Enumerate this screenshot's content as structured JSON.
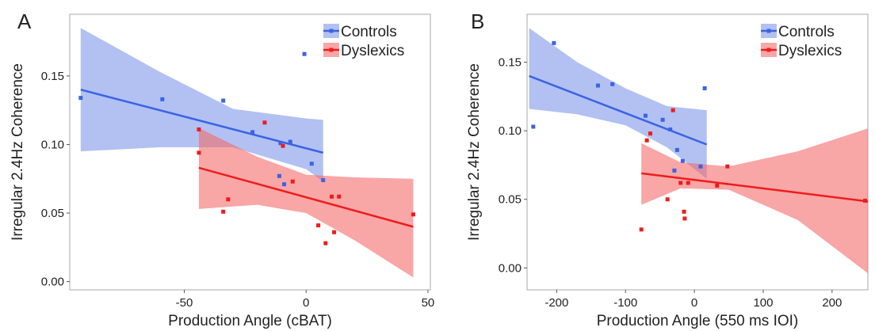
{
  "chart_data": [
    {
      "type": "scatter",
      "label": "A",
      "x_label": "Production Angle (cBAT)",
      "y_label": "Irregular 2.4Hz Coherence",
      "xlim": [
        -97,
        51
      ],
      "ylim": [
        -0.006,
        0.195
      ],
      "xticks": [
        -50,
        0,
        50
      ],
      "yticks": [
        {
          "value": 0,
          "label": "0.00"
        },
        {
          "value": 0.05,
          "label": "0.05"
        },
        {
          "value": 0.1,
          "label": "0.10"
        },
        {
          "value": 0.15,
          "label": "0.15"
        }
      ],
      "legend": "top-right",
      "series": [
        {
          "name": "Controls",
          "color": "#3b63e3",
          "band_color": "#7f97ea",
          "x": [
            -92.5,
            -59,
            -34,
            -22,
            -10.5,
            -6.5,
            -0.7,
            -11,
            -9,
            2.3,
            7
          ],
          "values": [
            0.134,
            0.133,
            0.132,
            0.109,
            0.101,
            0.102,
            0.166,
            0.077,
            0.071,
            0.086,
            0.074
          ],
          "fit_x": [
            -92.5,
            7
          ],
          "fit_values": [
            0.14,
            0.094
          ],
          "band_x": [
            -92.5,
            -60,
            -30,
            0,
            7
          ],
          "band_upper": [
            0.185,
            0.153,
            0.126,
            0.119,
            0.118
          ],
          "band_lower": [
            0.095,
            0.098,
            0.098,
            0.082,
            0.073
          ]
        },
        {
          "name": "Dyslexics",
          "color": "#ee1c1c",
          "band_color": "#f46a6a",
          "x": [
            -44,
            -44,
            -32,
            -34,
            -17,
            -9.5,
            -5.5,
            5,
            8,
            10.5,
            13.5,
            11.5,
            44
          ],
          "values": [
            0.094,
            0.111,
            0.06,
            0.051,
            0.116,
            0.099,
            0.073,
            0.041,
            0.028,
            0.062,
            0.062,
            0.036,
            0.049
          ],
          "fit_x": [
            -44,
            44
          ],
          "fit_values": [
            0.083,
            0.04
          ],
          "band_x": [
            -44,
            -20,
            0,
            20,
            44
          ],
          "band_upper": [
            0.112,
            0.091,
            0.078,
            0.076,
            0.075
          ],
          "band_lower": [
            0.053,
            0.056,
            0.05,
            0.03,
            0.003
          ]
        }
      ]
    },
    {
      "type": "scatter",
      "label": "B",
      "x_label": "Production Angle (550 ms IOI)",
      "y_label": "Irregular 2.4Hz Coherence",
      "xlim": [
        -243,
        252
      ],
      "ylim": [
        -0.016,
        0.185
      ],
      "xticks": [
        -200,
        -100,
        0,
        100,
        200
      ],
      "yticks": [
        {
          "value": 0,
          "label": "0.00"
        },
        {
          "value": 0.05,
          "label": "0.05"
        },
        {
          "value": 0.1,
          "label": "0.10"
        },
        {
          "value": 0.15,
          "label": "0.15"
        }
      ],
      "legend": "top-right",
      "series": [
        {
          "name": "Controls",
          "color": "#3b63e3",
          "band_color": "#7f97ea",
          "x": [
            -234,
            -204,
            -140,
            -119,
            -71,
            -46,
            -35,
            -25,
            -17,
            -29,
            9,
            15
          ],
          "values": [
            0.103,
            0.164,
            0.133,
            0.134,
            0.111,
            0.108,
            0.101,
            0.086,
            0.078,
            0.071,
            0.074,
            0.131
          ],
          "fit_x": [
            -240,
            18
          ],
          "fit_values": [
            0.14,
            0.09
          ],
          "band_x": [
            -240,
            -170,
            -100,
            -40,
            18
          ],
          "band_upper": [
            0.175,
            0.15,
            0.131,
            0.118,
            0.115
          ],
          "band_lower": [
            0.116,
            0.112,
            0.104,
            0.088,
            0.065
          ]
        },
        {
          "name": "Dyslexics",
          "color": "#ee1c1c",
          "band_color": "#f46a6a",
          "x": [
            -77,
            -69,
            -64,
            -31,
            -39,
            -20,
            -9,
            -15,
            -14,
            33,
            48,
            248
          ],
          "values": [
            0.028,
            0.093,
            0.098,
            0.115,
            0.05,
            0.062,
            0.062,
            0.041,
            0.036,
            0.06,
            0.074,
            0.049
          ],
          "fit_x": [
            -77,
            260
          ],
          "fit_values": [
            0.069,
            0.048
          ],
          "band_x": [
            -77,
            -20,
            50,
            150,
            260
          ],
          "band_upper": [
            0.091,
            0.077,
            0.074,
            0.085,
            0.103
          ],
          "band_lower": [
            0.046,
            0.058,
            0.057,
            0.035,
            -0.007
          ]
        }
      ]
    }
  ]
}
